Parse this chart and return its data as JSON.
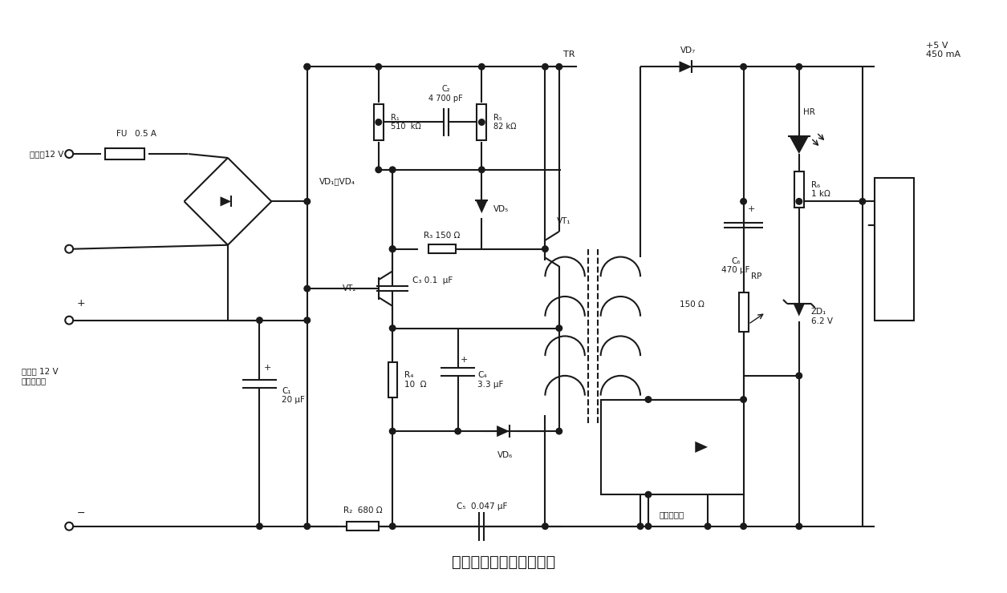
{
  "title": "车载手机充电器电路原理",
  "background_color": "#ffffff",
  "line_color": "#1a1a1a",
  "line_width": 1.5,
  "fig_width": 12.55,
  "fig_height": 7.4,
  "labels": {
    "fu": "FU   0.5 A",
    "r1": "R₁\n510  kΩ",
    "c2": "C₂\n4 700 pF",
    "r5": "R₅\n82 kΩ",
    "vd5": "VD₅",
    "vt1": "VT₁",
    "vt2": "VT₂",
    "r3": "R₃ 150 Ω",
    "c3": "C₃ 0.1  μF",
    "r4": "R₄\n10  Ω",
    "c4": "C₄\n3.3 μF",
    "vd6": "VD₆",
    "r2": "R₂  680 Ω",
    "c5": "C₅  0.047 μF",
    "c1": "C₁\n20 μF",
    "tr": "TR",
    "vd7": "VD₇",
    "c6": "C₆\n470 μF",
    "r6": "R₆\n1 kΩ",
    "hr": "HR",
    "output": "+5 V\n450 mA",
    "rp": "RP",
    "rp_val": "150 Ω",
    "zd1": "ZD₁\n6.2 V",
    "optocoupler": "光电耦合管",
    "input_ac": "接交流12 V",
    "input_dc": "点烟器 12 V\n电源输入端",
    "vd1_4": "VD₁～VD₄",
    "plus1": "+",
    "minus1": "−"
  }
}
